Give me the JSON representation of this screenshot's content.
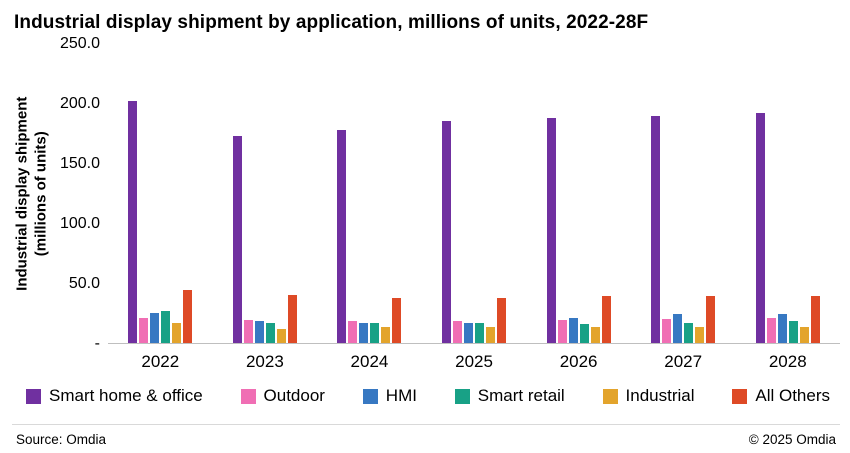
{
  "title": "Industrial display shipment by application, millions of units, 2022-28F",
  "footer": {
    "source": "Source: Omdia",
    "copyright": "© 2025 Omdia"
  },
  "chart_data": {
    "type": "bar",
    "title": "Industrial display shipment by application, millions of units, 2022-28F",
    "ylabel_line1": "Industrial display shipment",
    "ylabel_line2": "(millions of units)",
    "xlabel": "",
    "ylim": [
      0,
      250
    ],
    "grid": false,
    "legend_position": "bottom",
    "yticks": [
      {
        "value": 250,
        "label": "250.0"
      },
      {
        "value": 200,
        "label": "200.0"
      },
      {
        "value": 150,
        "label": "150.0"
      },
      {
        "value": 100,
        "label": "100.0"
      },
      {
        "value": 50,
        "label": "50.0"
      },
      {
        "value": 0,
        "label": "-"
      }
    ],
    "categories": [
      "2022",
      "2023",
      "2024",
      "2025",
      "2026",
      "2027",
      "2028"
    ],
    "series": [
      {
        "name": "Smart home & office",
        "color": "#7030A0",
        "values": [
          202,
          173,
          178,
          186,
          188,
          190,
          192
        ]
      },
      {
        "name": "Outdoor",
        "color": "#F06EB4",
        "values": [
          21,
          19,
          18,
          18,
          19,
          20,
          21
        ]
      },
      {
        "name": "HMI",
        "color": "#3778C2",
        "values": [
          25,
          18,
          17,
          17,
          21,
          24,
          24
        ]
      },
      {
        "name": "Smart retail",
        "color": "#18A186",
        "values": [
          27,
          17,
          17,
          17,
          16,
          17,
          18
        ]
      },
      {
        "name": "Industrial",
        "color": "#E3A42C",
        "values": [
          17,
          12,
          13,
          13,
          13,
          13,
          13
        ]
      },
      {
        "name": "All Others",
        "color": "#DE4A26",
        "values": [
          44,
          40,
          38,
          38,
          39,
          39,
          39
        ]
      }
    ]
  }
}
